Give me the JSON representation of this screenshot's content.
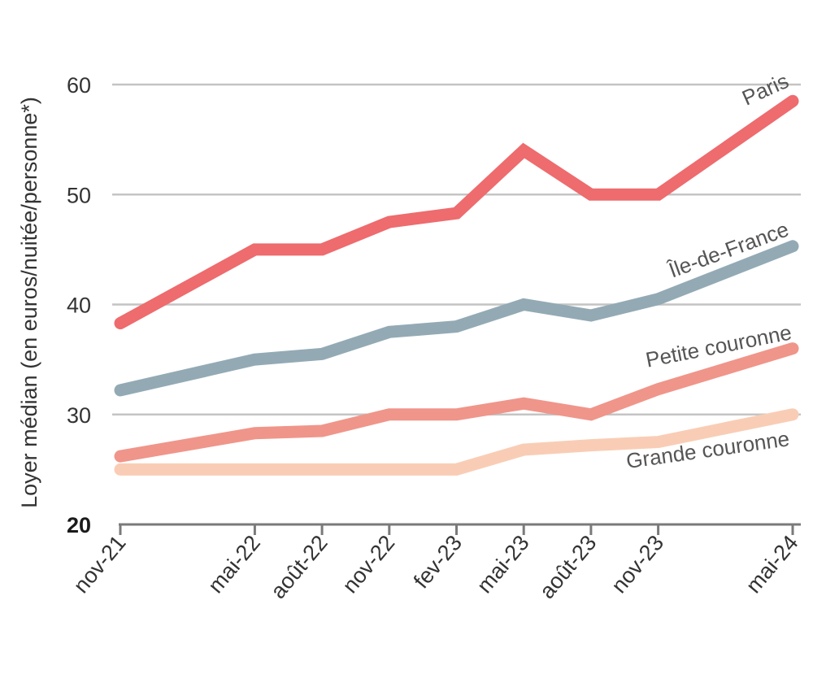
{
  "chart_data": {
    "type": "line",
    "ylabel": "Loyer médian (en euros/nuitée/personne*)",
    "xlabel": "",
    "ylim": [
      20,
      62
    ],
    "yticks": [
      20,
      30,
      40,
      50,
      60
    ],
    "categories": [
      "nov-21",
      "mai-22",
      "août-22",
      "nov-22",
      "fev-23",
      "mai-23",
      "août-23",
      "nov-23",
      "mai-24"
    ],
    "x_months": [
      0,
      6,
      9,
      12,
      15,
      18,
      21,
      24,
      30
    ],
    "grid": true,
    "series": [
      {
        "name": "Paris",
        "color": "#ee6b6e",
        "values": [
          38.3,
          45.0,
          45.0,
          47.5,
          48.3,
          54.0,
          50.0,
          50.0,
          58.5
        ]
      },
      {
        "name": "Île-de-France",
        "color": "#93aab5",
        "values": [
          32.2,
          35.0,
          35.5,
          37.5,
          38.0,
          40.0,
          39.0,
          40.5,
          45.3
        ]
      },
      {
        "name": "Petite couronne",
        "color": "#f0958a",
        "values": [
          26.2,
          28.3,
          28.5,
          30.0,
          30.0,
          31.0,
          30.0,
          32.3,
          36.0
        ]
      },
      {
        "name": "Grande couronne",
        "color": "#f9cdb5",
        "values": [
          25.0,
          25.0,
          25.0,
          25.0,
          25.0,
          26.8,
          27.2,
          27.5,
          30.0
        ]
      }
    ]
  }
}
